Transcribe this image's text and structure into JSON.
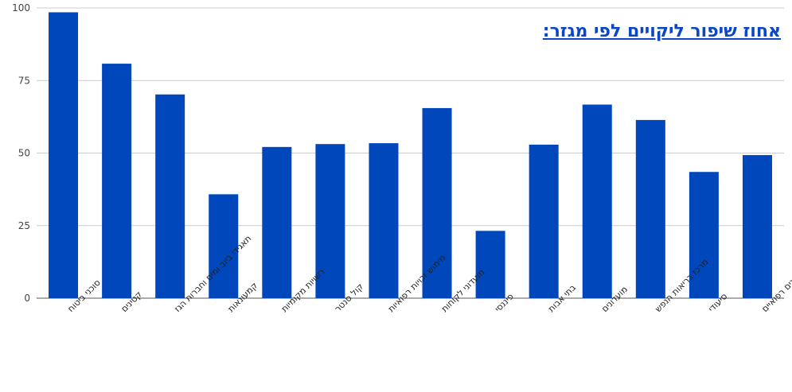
{
  "chart_data": {
    "type": "bar",
    "title": "אחוז שיפור ליקויים לפי מגזר:",
    "xlabel": "",
    "ylabel": "",
    "ylim": [
      0,
      100
    ],
    "yticks": [
      0,
      25,
      50,
      75,
      100
    ],
    "grid": true,
    "bar_color": "#0047BB",
    "categories": [
      "סוכני ביטוח",
      "קטינים",
      "תאגידי ביוב ומים וחברות הגז",
      "קמעונאות",
      "רשויות מקומיות",
      "קול סנטר",
      "מימוש זכויות רפואיות",
      "מועדוני לקוחות",
      "פיננסי",
      "בתי אבות",
      "מועדונים",
      "מרכז בריאות הנפש",
      "סיעודי",
      "מכונים רפואיים"
    ],
    "values": [
      98.5,
      80.8,
      70.2,
      35.8,
      52.1,
      53.1,
      53.4,
      65.5,
      23.2,
      52.9,
      66.7,
      61.4,
      43.5,
      49.3
    ]
  }
}
